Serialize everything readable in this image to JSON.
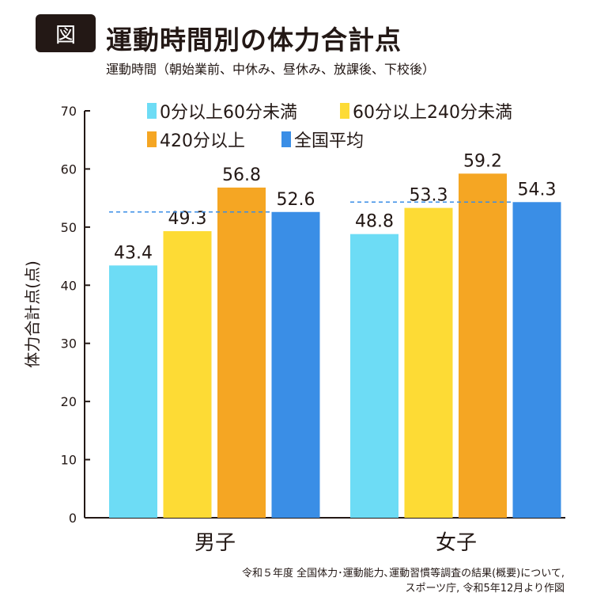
{
  "header": {
    "badge": "図",
    "title": "運動時間別の体力合計点",
    "subtitle": "運動時間（朝始業前、中休み、昼休み、放課後、下校後）"
  },
  "source": {
    "line1": "令和５年度 全国体力･運動能力､運動習慣等調査の結果(概要)について,",
    "line2": "スポーツ庁, 令和5年12月より作図"
  },
  "chart_data": {
    "type": "bar",
    "title": "運動時間別の体力合計点",
    "ylabel": "体力合計点(点)",
    "xlabel": "",
    "ylim": [
      0,
      70
    ],
    "yticks": [
      0,
      10,
      20,
      30,
      40,
      50,
      60,
      70
    ],
    "grid": false,
    "legend_placement": "top",
    "categories": [
      "男子",
      "女子"
    ],
    "series": [
      {
        "name": "0分以上60分未満",
        "color": "#6ddcf5",
        "values": [
          43.4,
          48.8
        ]
      },
      {
        "name": "60分以上240分未満",
        "color": "#fddb35",
        "values": [
          49.3,
          53.3
        ]
      },
      {
        "name": "420分以上",
        "color": "#f5a623",
        "values": [
          56.8,
          59.2
        ]
      },
      {
        "name": "全国平均",
        "color": "#3a8ee6",
        "values": [
          52.6,
          54.3
        ]
      }
    ],
    "reference_line": "全国平均 (dashed)"
  }
}
